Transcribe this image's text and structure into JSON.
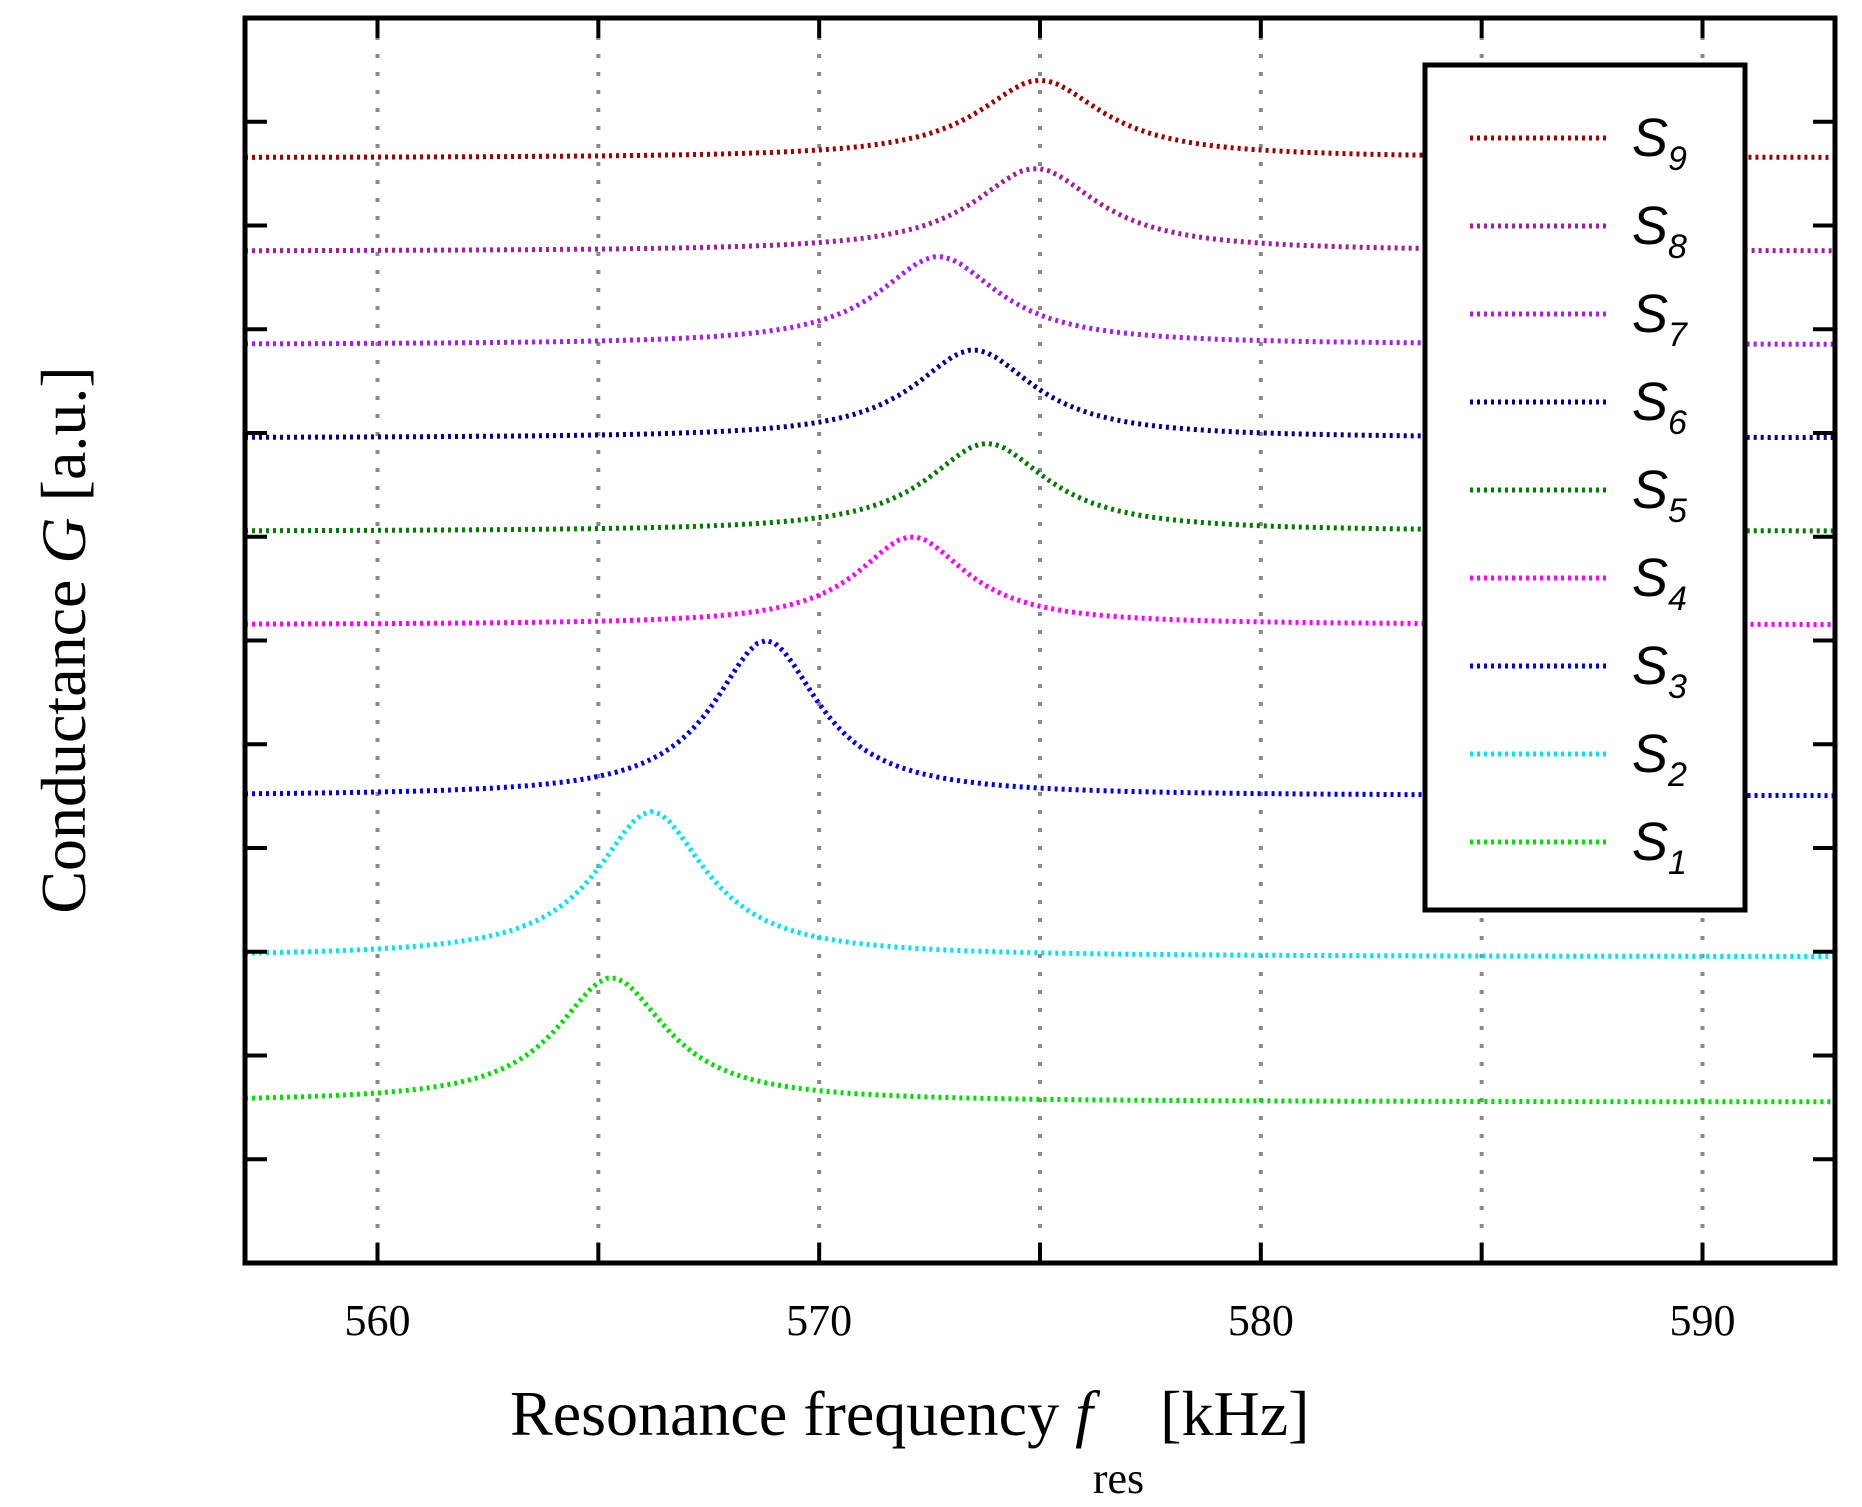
{
  "chart_data": {
    "type": "line",
    "title": "",
    "xlabel": {
      "main": "Resonance frequency ",
      "symbol": "f",
      "subscript": "res",
      "unit": " [kHz]"
    },
    "ylabel": {
      "main": "Conductance ",
      "symbol": "G",
      "unit": " [a.u.]"
    },
    "xlim": [
      557,
      593
    ],
    "ylim": [
      0,
      12
    ],
    "xticks": [
      560,
      570,
      580,
      590
    ],
    "xtick_labels": [
      "560",
      "570",
      "580",
      "590"
    ],
    "xgrid": [
      560,
      565,
      570,
      575,
      580,
      585,
      590
    ],
    "yticks": [
      1,
      2,
      3,
      4,
      5,
      6,
      7,
      8,
      9,
      10,
      11
    ],
    "ytick_labels_visible": false,
    "grid": "vertical-dotted",
    "legend_position": "top-right",
    "series": [
      {
        "name": "S",
        "subscript": "9",
        "color": "#a00000",
        "baseline": 10.65,
        "peak_x": 575.0,
        "peak_y": 11.4,
        "width": 3.4
      },
      {
        "name": "S",
        "subscript": "8",
        "color": "#a0209a",
        "baseline": 9.75,
        "peak_x": 574.9,
        "peak_y": 10.55,
        "width": 3.4
      },
      {
        "name": "S",
        "subscript": "7",
        "color": "#a020f0",
        "baseline": 8.85,
        "peak_x": 572.7,
        "peak_y": 9.7,
        "width": 3.3
      },
      {
        "name": "S",
        "subscript": "6",
        "color": "#00008b",
        "baseline": 7.95,
        "peak_x": 573.5,
        "peak_y": 8.8,
        "width": 3.3
      },
      {
        "name": "S",
        "subscript": "5",
        "color": "#007a00",
        "baseline": 7.05,
        "peak_x": 573.8,
        "peak_y": 7.9,
        "width": 3.3
      },
      {
        "name": "S",
        "subscript": "4",
        "color": "#ff00ff",
        "baseline": 6.15,
        "peak_x": 572.1,
        "peak_y": 7.0,
        "width": 3.0
      },
      {
        "name": "S",
        "subscript": "3",
        "color": "#0000ee",
        "baseline": 4.5,
        "peak_x": 568.8,
        "peak_y": 6.0,
        "width": 2.9
      },
      {
        "name": "S",
        "subscript": "2",
        "color": "#00e5ee",
        "baseline": 2.95,
        "peak_x": 566.2,
        "peak_y": 4.35,
        "width": 3.0
      },
      {
        "name": "S",
        "subscript": "1",
        "color": "#00e000",
        "baseline": 1.55,
        "peak_x": 565.3,
        "peak_y": 2.75,
        "width": 3.0
      }
    ]
  }
}
